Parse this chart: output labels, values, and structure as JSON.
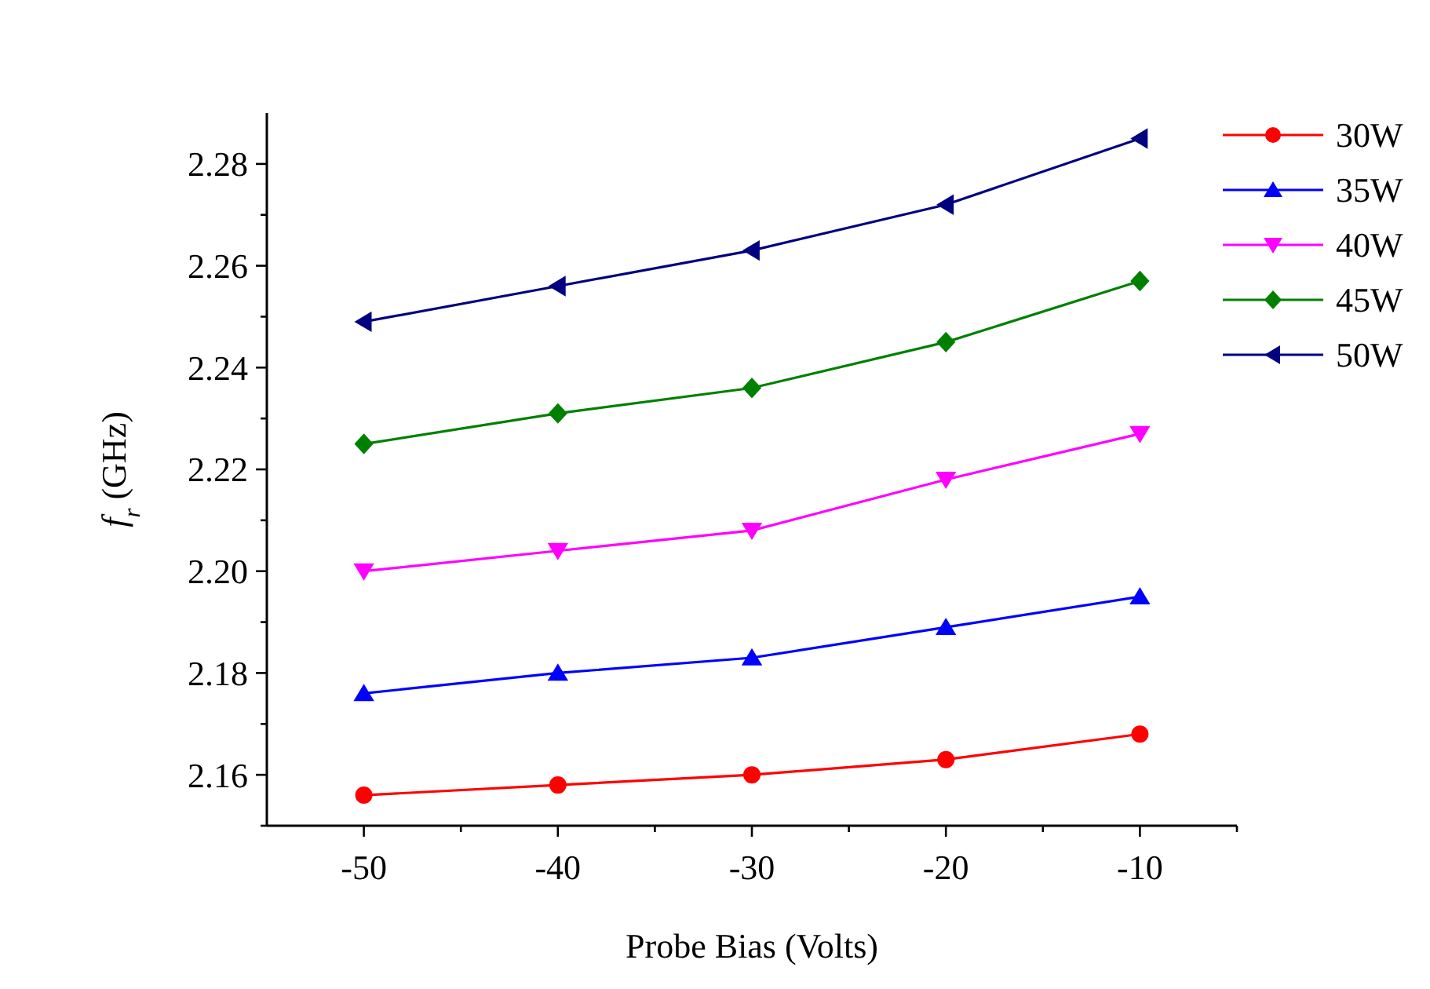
{
  "chart_data": {
    "type": "line",
    "xlabel": "Probe Bias (Volts)",
    "ylabel": "f$_{r}$ (GHz)",
    "x": [
      -50,
      -40,
      -30,
      -20,
      -10
    ],
    "xlim": [
      -55,
      -5
    ],
    "ylim": [
      2.15,
      2.29
    ],
    "xticks": [
      -50,
      {
        "value": -45,
        "label": null
      },
      -40,
      {
        "value": -35,
        "label": null
      },
      -30,
      {
        "value": -25,
        "label": null
      },
      -20,
      {
        "value": -15,
        "label": null
      },
      -10,
      {
        "value": -5,
        "label": null
      }
    ],
    "yticks": [
      {
        "value": 2.15,
        "label": null
      },
      2.16,
      {
        "value": 2.17,
        "label": null
      },
      2.18,
      {
        "value": 2.19,
        "label": null
      },
      {
        "value": 2.2,
        "label": "2.20"
      },
      {
        "value": 2.21,
        "label": null
      },
      2.22,
      {
        "value": 2.23,
        "label": null
      },
      2.24,
      {
        "value": 2.25,
        "label": null
      },
      2.26,
      {
        "value": 2.27,
        "label": null
      },
      2.28
    ],
    "grid": false,
    "legend": "top right",
    "line_style": "solid",
    "series": [
      {
        "name": "30W",
        "color": "#ff0000",
        "marker": "circle",
        "values": [
          2.156,
          2.158,
          2.16,
          2.163,
          2.168
        ]
      },
      {
        "name": "35W",
        "color": "#0000ff",
        "marker": "triangle",
        "values": [
          2.176,
          2.18,
          2.183,
          2.189,
          2.195
        ]
      },
      {
        "name": "40W",
        "color": "#ff00ff",
        "marker": "triangle-down",
        "values": [
          2.2,
          2.204,
          2.208,
          2.218,
          2.227
        ]
      },
      {
        "name": "45W",
        "color": "#008000",
        "marker": "diamond",
        "values": [
          2.225,
          2.231,
          2.236,
          2.245,
          2.257
        ]
      },
      {
        "name": "50W",
        "color": "#000080",
        "marker": "triangle-left",
        "values": [
          2.249,
          2.256,
          2.263,
          2.272,
          2.285
        ]
      }
    ]
  }
}
